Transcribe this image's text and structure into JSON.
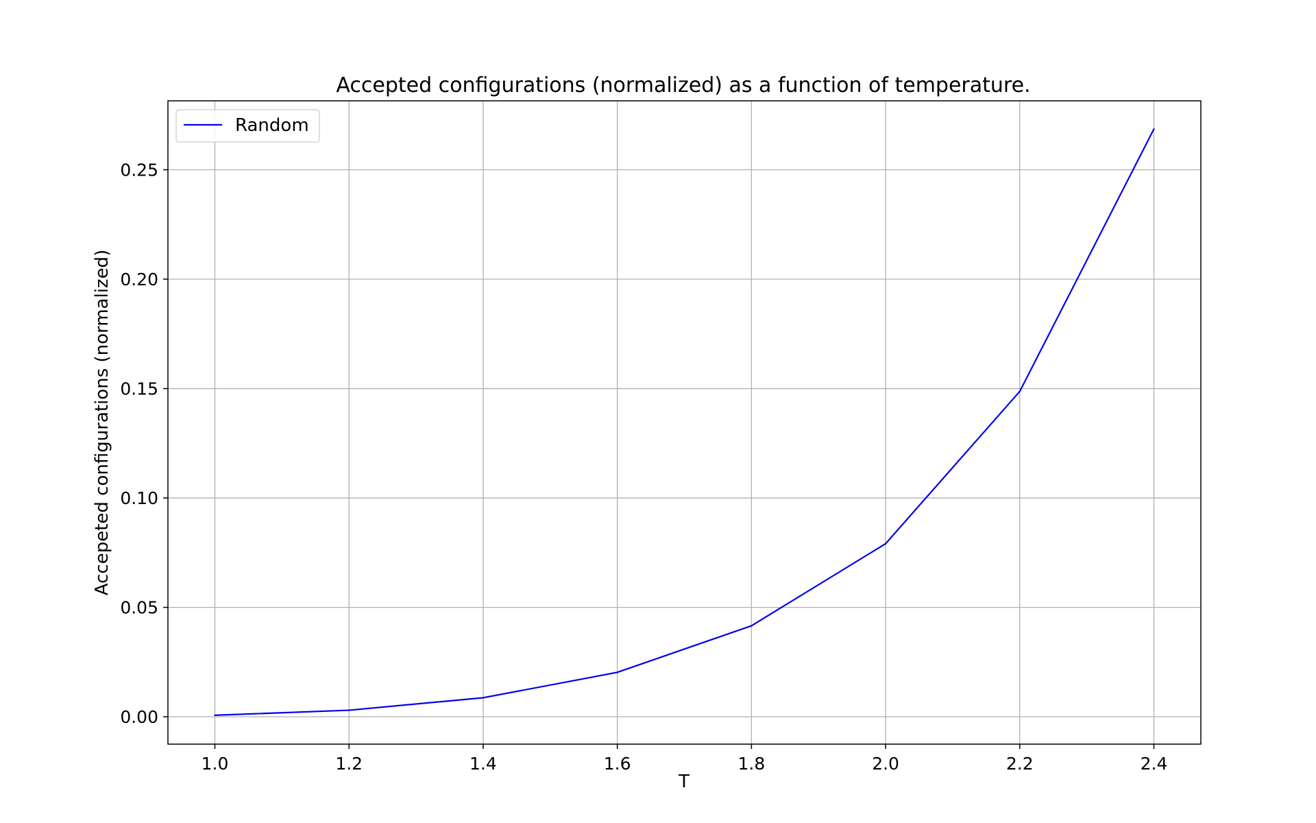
{
  "chart_data": {
    "type": "line",
    "title": "Accepted configurations (normalized) as a function of temperature.",
    "xlabel": "T",
    "ylabel": "Accepeted configurations (normalized)",
    "xlim": [
      0.93,
      2.47
    ],
    "ylim": [
      -0.0125,
      0.2815
    ],
    "xticks": [
      1.0,
      1.2,
      1.4,
      1.6,
      1.8,
      2.0,
      2.2,
      2.4
    ],
    "xtick_labels": [
      "1.0",
      "1.2",
      "1.4",
      "1.6",
      "1.8",
      "2.0",
      "2.2",
      "2.4"
    ],
    "yticks": [
      0.0,
      0.05,
      0.1,
      0.15,
      0.2,
      0.25
    ],
    "ytick_labels": [
      "0.00",
      "0.05",
      "0.10",
      "0.15",
      "0.20",
      "0.25"
    ],
    "grid": true,
    "legend_position": "top-left",
    "series": [
      {
        "name": "Random",
        "color": "#0000ee",
        "x": [
          1.0,
          1.2,
          1.4,
          1.6,
          1.8,
          2.0,
          2.2,
          2.4
        ],
        "y": [
          0.0007,
          0.003,
          0.0087,
          0.0203,
          0.0416,
          0.0791,
          0.1487,
          0.2686
        ]
      }
    ]
  }
}
